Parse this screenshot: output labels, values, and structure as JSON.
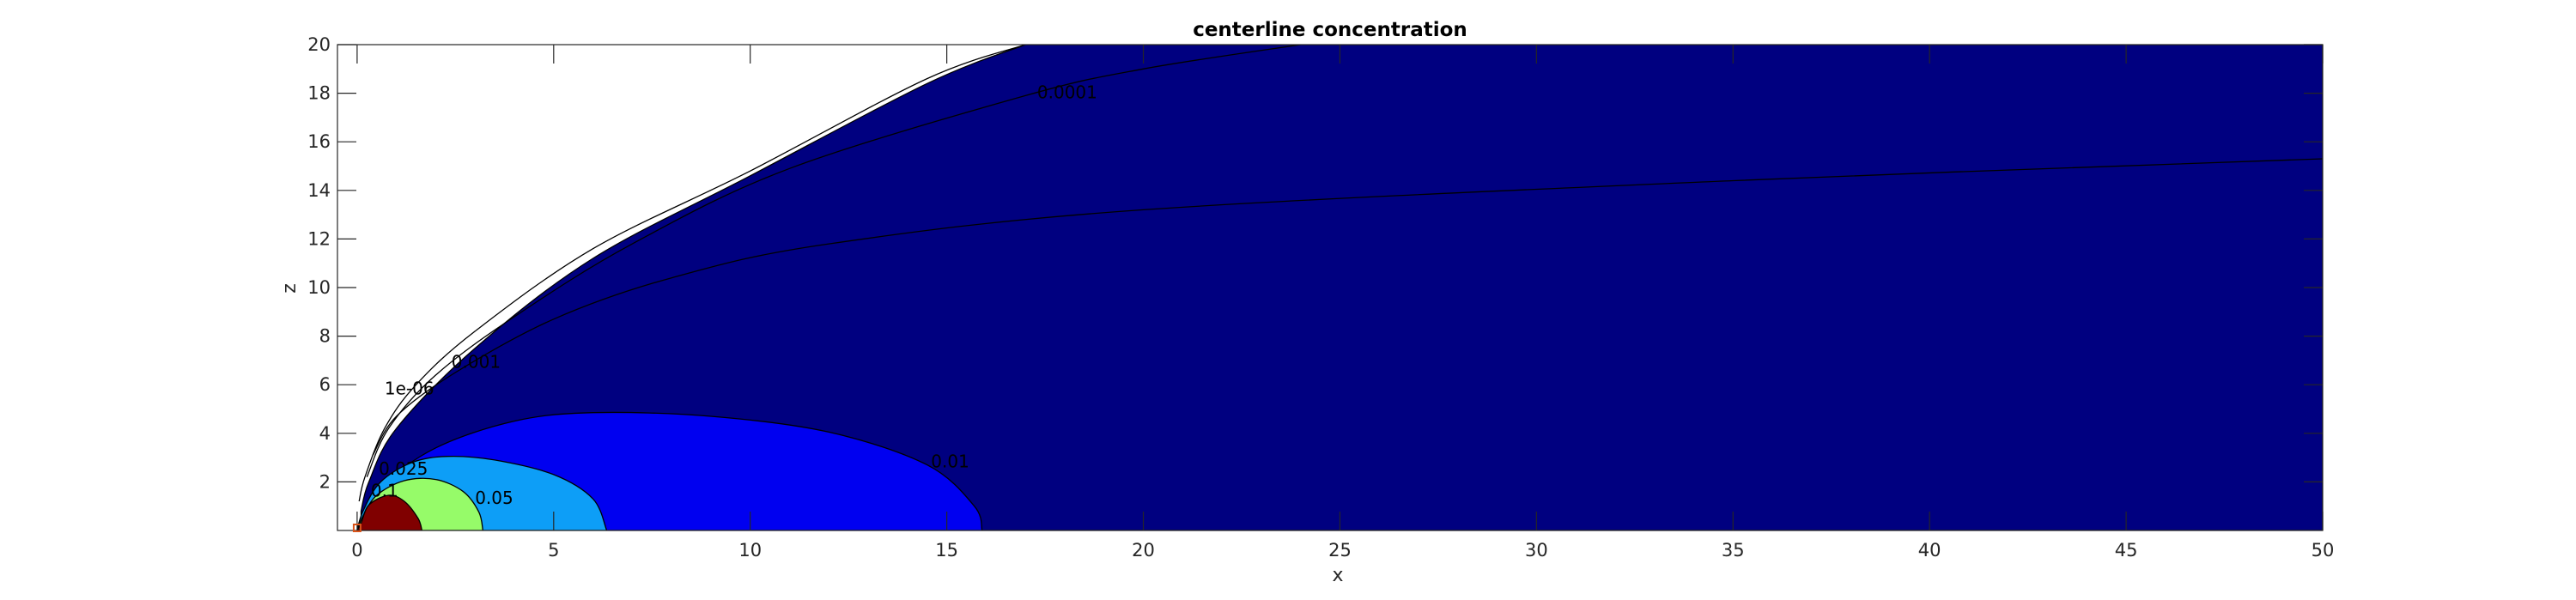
{
  "chart_data": {
    "type": "contour",
    "title": "centerline concentration",
    "xlabel": "x",
    "ylabel": "z",
    "xlim": [
      0,
      50
    ],
    "ylim": [
      0,
      20
    ],
    "xticks": [
      0,
      5,
      10,
      15,
      20,
      25,
      30,
      35,
      40,
      45,
      50
    ],
    "yticks": [
      2,
      4,
      6,
      8,
      10,
      12,
      14,
      16,
      18,
      20
    ],
    "grid": false,
    "filled_regions": [
      {
        "level": 1e-06,
        "color": "#000080",
        "outline": [
          [
            0.1,
            0.8
          ],
          [
            0.3,
            2.0
          ],
          [
            1.0,
            4.2
          ],
          [
            3.0,
            7.5
          ],
          [
            6.0,
            11.2
          ],
          [
            10.0,
            14.6
          ],
          [
            14.5,
            18.4
          ],
          [
            17.0,
            20.0
          ],
          [
            50.0,
            20.0
          ],
          [
            50.0,
            0.0
          ]
        ]
      },
      {
        "level": 0.01,
        "color": "#0000f0",
        "outline": [
          [
            0.1,
            0.5
          ],
          [
            0.6,
            1.8
          ],
          [
            2.0,
            3.4
          ],
          [
            4.0,
            4.5
          ],
          [
            6.0,
            4.85
          ],
          [
            9.0,
            4.7
          ],
          [
            12.0,
            4.05
          ],
          [
            14.5,
            2.7
          ],
          [
            15.7,
            1.0
          ],
          [
            15.9,
            0.0
          ]
        ]
      },
      {
        "level": 0.025,
        "color": "#0d9ef7",
        "outline": [
          [
            0.15,
            0.8
          ],
          [
            0.6,
            2.0
          ],
          [
            1.4,
            2.8
          ],
          [
            2.3,
            3.05
          ],
          [
            3.5,
            2.9
          ],
          [
            5.0,
            2.3
          ],
          [
            6.0,
            1.3
          ],
          [
            6.35,
            0.0
          ]
        ]
      },
      {
        "level": 0.05,
        "color": "#96fb69",
        "outline": [
          [
            0.15,
            0.6
          ],
          [
            0.5,
            1.45
          ],
          [
            1.2,
            2.05
          ],
          [
            2.0,
            2.1
          ],
          [
            2.7,
            1.6
          ],
          [
            3.1,
            0.75
          ],
          [
            3.2,
            0.0
          ]
        ]
      },
      {
        "level": 0.1,
        "color": "#800000",
        "outline": [
          [
            0.1,
            0.3
          ],
          [
            0.3,
            1.05
          ],
          [
            0.8,
            1.45
          ],
          [
            1.2,
            1.2
          ],
          [
            1.55,
            0.5
          ],
          [
            1.65,
            0.0
          ]
        ]
      }
    ],
    "contour_lines": [
      {
        "label": "1e-06",
        "points": [
          [
            0.05,
            1.2
          ],
          [
            0.2,
            2.2
          ],
          [
            0.7,
            4.2
          ],
          [
            1.5,
            6.0
          ],
          [
            3.0,
            8.2
          ],
          [
            6.0,
            11.6
          ],
          [
            10.0,
            14.8
          ],
          [
            14.5,
            18.6
          ],
          [
            17.0,
            20.0
          ]
        ]
      },
      {
        "label": "0.0001",
        "points": [
          [
            0.25,
            2.2
          ],
          [
            0.8,
            4.2
          ],
          [
            2.0,
            6.4
          ],
          [
            4.0,
            8.8
          ],
          [
            7.0,
            11.8
          ],
          [
            11.0,
            14.9
          ],
          [
            17.0,
            17.9
          ],
          [
            20.0,
            19.0
          ],
          [
            24.0,
            20.0
          ]
        ]
      },
      {
        "label": "0.001",
        "points": [
          [
            0.4,
            3.1
          ],
          [
            1.0,
            4.7
          ],
          [
            2.5,
            6.5
          ],
          [
            5.0,
            8.7
          ],
          [
            8.0,
            10.4
          ],
          [
            12.0,
            11.8
          ],
          [
            20.0,
            13.2
          ],
          [
            35.0,
            14.4
          ],
          [
            50.0,
            15.3
          ]
        ]
      }
    ],
    "contour_labels": [
      {
        "text": "0.0001",
        "x": 17.3,
        "z": 17.8
      },
      {
        "text": "0.001",
        "x": 2.4,
        "z": 6.7
      },
      {
        "text": "1e-06",
        "x": 0.7,
        "z": 5.6
      },
      {
        "text": "0.01",
        "x": 14.6,
        "z": 2.6
      },
      {
        "text": "0.025",
        "x": 0.55,
        "z": 2.3
      },
      {
        "text": "0.05",
        "x": 3.0,
        "z": 1.1
      },
      {
        "text": "0.1",
        "x": 0.35,
        "z": 1.4
      }
    ],
    "source_marker": {
      "x": 0,
      "z": 0,
      "color": "#d95319"
    }
  }
}
